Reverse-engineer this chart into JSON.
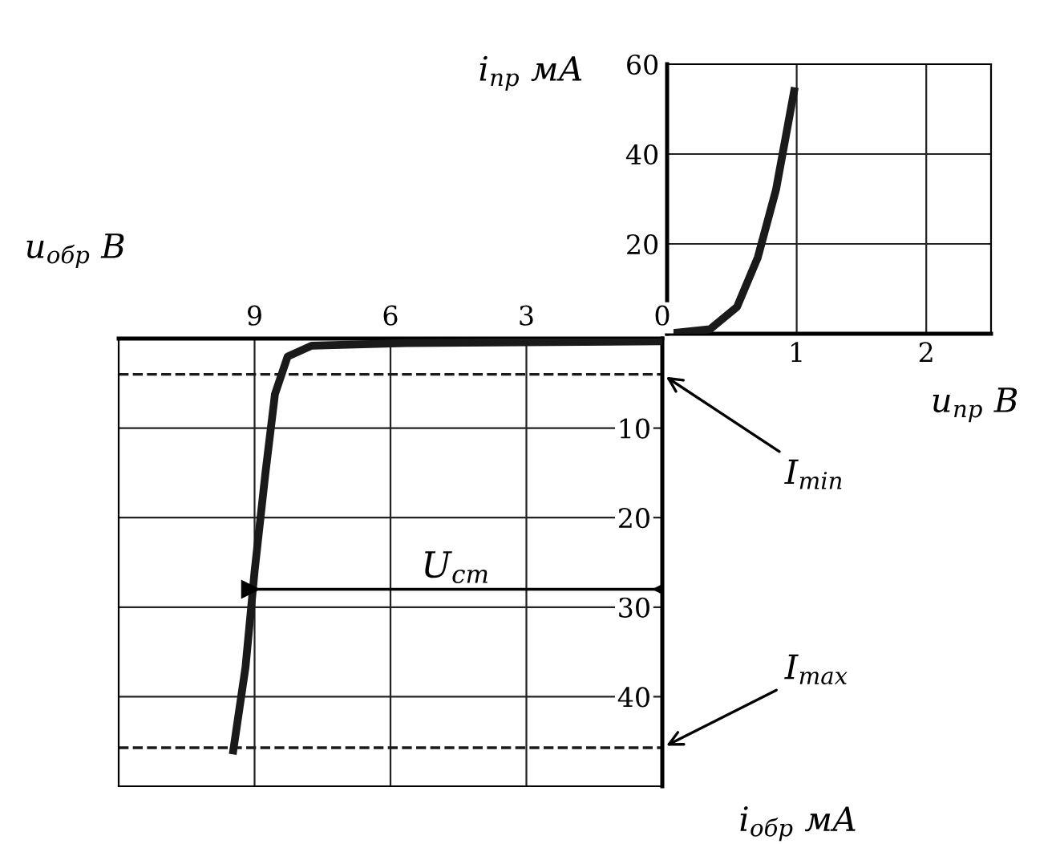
{
  "chart_data": [
    {
      "type": "line",
      "xlabel": "u$_{пр}$ В",
      "ylabel": "i$_{пр}$ мА",
      "xlim": [
        0,
        2.5
      ],
      "ylim": [
        0,
        60
      ],
      "xticks": [
        1,
        2
      ],
      "yticks": [
        20,
        40,
        60
      ],
      "grid": true,
      "line_style": "solid",
      "series": [
        {
          "color": "#1a1a1a",
          "x": [
            0,
            0.33,
            0.54,
            0.7,
            0.84,
            0.98
          ],
          "values": [
            0,
            1,
            6,
            17,
            32,
            54
          ]
        }
      ]
    },
    {
      "type": "line",
      "xlabel": "u$_{обр}$ В",
      "ylabel": "i$_{обр}$ мА",
      "xlim": [
        12,
        0
      ],
      "ylim": [
        50,
        0
      ],
      "xticks": [
        9,
        6,
        3,
        0
      ],
      "yticks": [
        10,
        20,
        30,
        40
      ],
      "grid": true,
      "line_style": "solid",
      "series": [
        {
          "color": "#1a1a1a",
          "x": [
            0,
            5.65,
            7.74,
            8.27,
            8.55,
            8.76,
            9.0,
            9.2,
            9.47
          ],
          "values": [
            0.3,
            0.5,
            0.8,
            2,
            6.2,
            15,
            26,
            36.7,
            46
          ]
        },
        {
          "color": "#000000",
          "x": [
            9.1,
            0
          ],
          "values": [
            28,
            28
          ],
          "marker": "triangle"
        }
      ],
      "ref_lines": [
        {
          "axis": "y",
          "value": 4,
          "label": "I$_{min}$",
          "line_style": "dashed",
          "color": "#1a1a1a"
        },
        {
          "axis": "y",
          "value": 45.7,
          "label": "I$_{max}$",
          "line_style": "dashed",
          "color": "#1a1a1a"
        }
      ],
      "annotations": [
        "U$_{ст}$"
      ]
    }
  ]
}
